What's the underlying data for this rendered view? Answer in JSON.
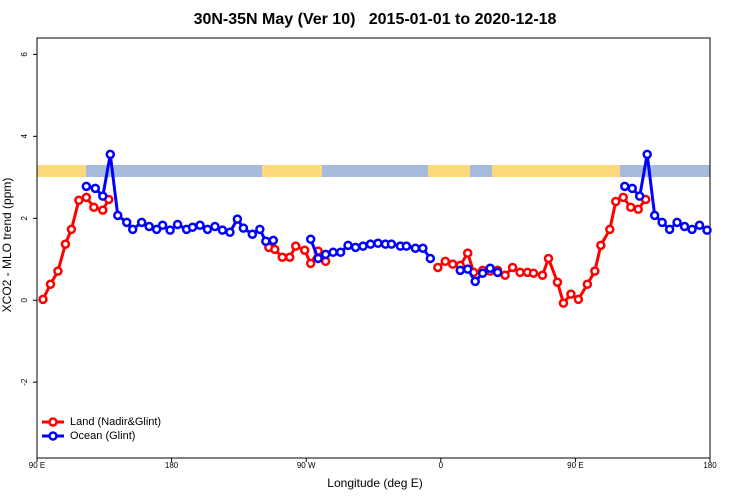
{
  "chart_data": {
    "type": "line",
    "title": "30N-35N May (Ver 10)   2015-01-01 to 2020-12-18",
    "x_label": "Longitude (deg E)",
    "y_label": "XCO2 - MLO trend (ppm)",
    "xlim": [
      90,
      540
    ],
    "xticks": [
      {
        "value": 90,
        "label": "90 E"
      },
      180,
      {
        "value": 270,
        "label": "90 W"
      },
      {
        "value": 360,
        "label": "0"
      },
      {
        "value": 450,
        "label": "90 E"
      },
      {
        "value": 540,
        "label": "180"
      }
    ],
    "ylim": [
      -3.85,
      6.4
    ],
    "yticks": [
      -2,
      0,
      2,
      4,
      6
    ],
    "legend_position": "bottom-left",
    "series": [
      {
        "name": "Land (Nadir&Glint)",
        "color": "#ff0000",
        "x": [
          94,
          99,
          104,
          109,
          113,
          118,
          123,
          128,
          134,
          138,
          null,
          245,
          249,
          254,
          259,
          263,
          269,
          273,
          278,
          283,
          null,
          358,
          363,
          368,
          373,
          378,
          382,
          388,
          393,
          398,
          403,
          408,
          413,
          418,
          422,
          428,
          432,
          438,
          442,
          447,
          452,
          458,
          463,
          467,
          473,
          477,
          482,
          487,
          492,
          497
        ],
        "values": [
          0.02,
          0.39,
          0.71,
          1.37,
          1.73,
          2.44,
          2.51,
          2.27,
          2.2,
          2.46,
          null,
          1.29,
          1.24,
          1.05,
          1.05,
          1.32,
          1.22,
          0.9,
          1.2,
          0.95,
          null,
          0.8,
          0.95,
          0.88,
          0.85,
          1.15,
          0.68,
          0.73,
          0.71,
          0.73,
          0.61,
          0.8,
          0.68,
          0.68,
          0.66,
          0.61,
          1.02,
          0.44,
          -0.07,
          0.15,
          0.02,
          0.39,
          0.71,
          1.34,
          1.73,
          2.41,
          2.51,
          2.27,
          2.22,
          2.46
        ]
      },
      {
        "name": "Ocean (Glint)",
        "color": "#0000ff",
        "x": [
          123,
          129,
          134,
          139,
          144,
          150,
          154,
          160,
          165,
          170,
          174,
          179,
          184,
          190,
          194,
          199,
          204,
          209,
          214,
          219,
          224,
          228,
          234,
          239,
          243,
          248,
          null,
          273,
          278,
          283,
          288,
          293,
          298,
          303,
          308,
          313,
          318,
          323,
          327,
          333,
          337,
          343,
          348,
          353,
          null,
          373,
          378,
          383,
          388,
          393,
          398,
          null,
          483,
          488,
          493,
          498,
          503,
          508,
          513,
          518,
          523,
          528,
          533,
          538
        ],
        "values": [
          2.78,
          2.73,
          2.54,
          3.56,
          2.07,
          1.9,
          1.73,
          1.9,
          1.8,
          1.73,
          1.83,
          1.71,
          1.85,
          1.73,
          1.78,
          1.83,
          1.73,
          1.8,
          1.71,
          1.66,
          1.98,
          1.76,
          1.61,
          1.73,
          1.44,
          1.46,
          null,
          1.49,
          1.02,
          1.12,
          1.17,
          1.17,
          1.34,
          1.29,
          1.32,
          1.37,
          1.39,
          1.37,
          1.37,
          1.32,
          1.32,
          1.27,
          1.27,
          1.02,
          null,
          0.73,
          0.76,
          0.46,
          0.66,
          0.78,
          0.68,
          null,
          2.78,
          2.73,
          2.54,
          3.56,
          2.07,
          1.9,
          1.73,
          1.9,
          1.8,
          1.73,
          1.83,
          1.71
        ]
      }
    ]
  }
}
